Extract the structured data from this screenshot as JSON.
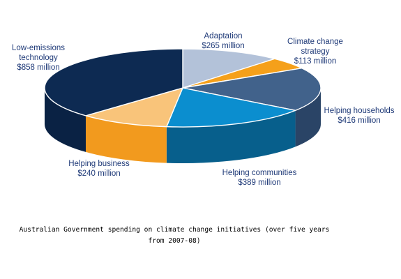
{
  "caption": "Australian Government spending on climate change initiatives (over five years from 2007-08)",
  "chart_data": {
    "type": "pie",
    "style": "3d",
    "title": "",
    "unit": "million",
    "slices": [
      {
        "label_lines": [
          "Adaptation",
          "$265 million"
        ],
        "value": 265,
        "color": "#b3c2d9",
        "side_color": "#8595ad"
      },
      {
        "label_lines": [
          "Climate change",
          "strategy",
          "$113 million"
        ],
        "value": 113,
        "color": "#f5a01a",
        "side_color": "#c47a0c"
      },
      {
        "label_lines": [
          "Helping households",
          "$416 million"
        ],
        "value": 416,
        "color": "#41628b",
        "side_color": "#2a4466"
      },
      {
        "label_lines": [
          "Helping communities",
          "$389 million"
        ],
        "value": 389,
        "color": "#0b8ecf",
        "side_color": "#075f8c"
      },
      {
        "label_lines": [
          "Helping business",
          "$240 million"
        ],
        "value": 240,
        "color": "#f9c47a",
        "side_color": "#f29a1e"
      },
      {
        "label_lines": [
          "Low-emissions",
          "technology",
          "$858 million"
        ],
        "value": 858,
        "color": "#0d2a52",
        "side_color": "#0a2244"
      }
    ]
  }
}
